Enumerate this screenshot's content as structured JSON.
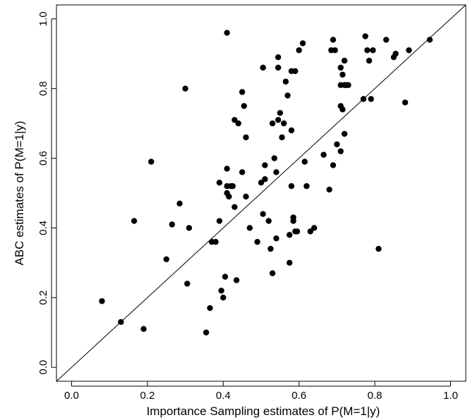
{
  "chart_data": {
    "type": "scatter",
    "title": "",
    "xlabel": "Importance Sampling estimates of P(M=1|y)",
    "ylabel": "ABC estimates of P(M=1|y)",
    "xlim": [
      -0.04,
      1.04
    ],
    "ylim": [
      -0.04,
      1.04
    ],
    "x_ticks": [
      "0.0",
      "0.2",
      "0.4",
      "0.6",
      "0.8",
      "1.0"
    ],
    "y_ticks": [
      "0.0",
      "0.2",
      "0.4",
      "0.6",
      "0.8",
      "1.0"
    ],
    "reference_line": {
      "type": "identity",
      "from": [
        -0.04,
        -0.04
      ],
      "to": [
        1.04,
        1.04
      ]
    },
    "grid": false,
    "marker_color": "#000000",
    "series": [
      {
        "points": [
          [
            0.08,
            0.19
          ],
          [
            0.13,
            0.13
          ],
          [
            0.165,
            0.42
          ],
          [
            0.19,
            0.11
          ],
          [
            0.21,
            0.59
          ],
          [
            0.25,
            0.31
          ],
          [
            0.265,
            0.41
          ],
          [
            0.285,
            0.47
          ],
          [
            0.3,
            0.8
          ],
          [
            0.305,
            0.24
          ],
          [
            0.31,
            0.4
          ],
          [
            0.365,
            0.17
          ],
          [
            0.37,
            0.36
          ],
          [
            0.38,
            0.36
          ],
          [
            0.355,
            0.1
          ],
          [
            0.39,
            0.53
          ],
          [
            0.39,
            0.42
          ],
          [
            0.395,
            0.22
          ],
          [
            0.4,
            0.2
          ],
          [
            0.405,
            0.26
          ],
          [
            0.41,
            0.96
          ],
          [
            0.41,
            0.57
          ],
          [
            0.41,
            0.52
          ],
          [
            0.41,
            0.5
          ],
          [
            0.415,
            0.49
          ],
          [
            0.42,
            0.52
          ],
          [
            0.425,
            0.52
          ],
          [
            0.43,
            0.46
          ],
          [
            0.43,
            0.71
          ],
          [
            0.435,
            0.25
          ],
          [
            0.44,
            0.7
          ],
          [
            0.45,
            0.79
          ],
          [
            0.45,
            0.56
          ],
          [
            0.455,
            0.75
          ],
          [
            0.46,
            0.66
          ],
          [
            0.46,
            0.49
          ],
          [
            0.47,
            0.4
          ],
          [
            0.49,
            0.36
          ],
          [
            0.5,
            0.53
          ],
          [
            0.505,
            0.86
          ],
          [
            0.505,
            0.44
          ],
          [
            0.51,
            0.58
          ],
          [
            0.51,
            0.54
          ],
          [
            0.52,
            0.42
          ],
          [
            0.525,
            0.34
          ],
          [
            0.53,
            0.27
          ],
          [
            0.53,
            0.7
          ],
          [
            0.535,
            0.6
          ],
          [
            0.54,
            0.56
          ],
          [
            0.54,
            0.37
          ],
          [
            0.545,
            0.89
          ],
          [
            0.545,
            0.86
          ],
          [
            0.545,
            0.71
          ],
          [
            0.55,
            0.73
          ],
          [
            0.555,
            0.66
          ],
          [
            0.56,
            0.7
          ],
          [
            0.565,
            0.82
          ],
          [
            0.57,
            0.78
          ],
          [
            0.575,
            0.38
          ],
          [
            0.575,
            0.3
          ],
          [
            0.58,
            0.85
          ],
          [
            0.58,
            0.68
          ],
          [
            0.58,
            0.52
          ],
          [
            0.585,
            0.43
          ],
          [
            0.585,
            0.42
          ],
          [
            0.59,
            0.85
          ],
          [
            0.59,
            0.39
          ],
          [
            0.595,
            0.39
          ],
          [
            0.6,
            0.91
          ],
          [
            0.61,
            0.93
          ],
          [
            0.615,
            0.59
          ],
          [
            0.62,
            0.52
          ],
          [
            0.63,
            0.39
          ],
          [
            0.64,
            0.4
          ],
          [
            0.665,
            0.61
          ],
          [
            0.68,
            0.51
          ],
          [
            0.685,
            0.91
          ],
          [
            0.69,
            0.94
          ],
          [
            0.69,
            0.58
          ],
          [
            0.695,
            0.91
          ],
          [
            0.7,
            0.64
          ],
          [
            0.71,
            0.81
          ],
          [
            0.71,
            0.75
          ],
          [
            0.71,
            0.62
          ],
          [
            0.71,
            0.86
          ],
          [
            0.715,
            0.84
          ],
          [
            0.715,
            0.74
          ],
          [
            0.72,
            0.88
          ],
          [
            0.72,
            0.67
          ],
          [
            0.72,
            0.81
          ],
          [
            0.725,
            0.81
          ],
          [
            0.73,
            0.81
          ],
          [
            0.77,
            0.77
          ],
          [
            0.775,
            0.95
          ],
          [
            0.78,
            0.91
          ],
          [
            0.785,
            0.88
          ],
          [
            0.79,
            0.77
          ],
          [
            0.795,
            0.91
          ],
          [
            0.81,
            0.34
          ],
          [
            0.83,
            0.94
          ],
          [
            0.85,
            0.89
          ],
          [
            0.855,
            0.9
          ],
          [
            0.88,
            0.76
          ],
          [
            0.89,
            0.91
          ],
          [
            0.945,
            0.94
          ]
        ]
      }
    ]
  }
}
